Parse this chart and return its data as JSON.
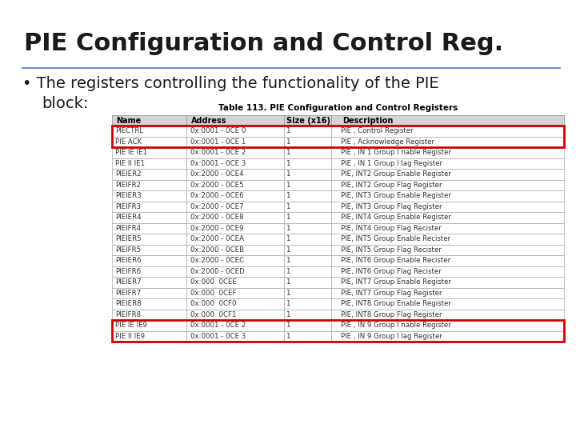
{
  "title": "PIE Configuration and Control Reg.",
  "bullet_text": "The registers controlling the functionality of the PIE",
  "bullet_text2": "block:",
  "table_title": "Table 113. PIE Configuration and Control Registers",
  "headers": [
    "Name",
    "Address",
    "Size (x16)",
    "Description"
  ],
  "rows": [
    [
      "PIECTRL",
      "0x:0001 - 0CE 0",
      "1",
      "PIE , Control Register"
    ],
    [
      "PIE ACK",
      "0x:0001 - 0CE 1",
      "1",
      "PIE , Acknowledge Register"
    ],
    [
      "PIE IE IE1",
      "0x:0001 - 0CE 2",
      "1",
      "PIE , IN 1 Group I nable Register"
    ],
    [
      "PIE II IE1",
      "0x:0001 - 0CE 3",
      "1",
      "PIE , IN 1 Group I lag Register"
    ],
    [
      "PIEIER2",
      "0x:2000 - 0CE4",
      "1",
      "PIE, INT2 Group Enable Register"
    ],
    [
      "PIEIFR2",
      "0x:2000 - 0CE5",
      "1",
      "PIE, INT2 Group Flag Register"
    ],
    [
      "PIEIER3",
      "0x:2000 - 0CE6",
      "1",
      "PIE, INT3 Group Enable Register"
    ],
    [
      "PIEIFR3",
      "0x:2000 - 0CE7",
      "1",
      "PIE, INT3 Group Flag Register"
    ],
    [
      "PIEIER4",
      "0x:2000 - 0CE8",
      "1",
      "PIE, INT4 Group Enable Register"
    ],
    [
      "PIEIFR4",
      "0x:2000 - 0CE9",
      "1",
      "PIE, INT4 Group Flag Recister"
    ],
    [
      "PIEIER5",
      "0x:2000 - 0CEA",
      "1",
      "PIE, INT5 Group Enable Recister"
    ],
    [
      "PIEIFR5",
      "0x:2000 - 0CEB",
      "1",
      "PIE, INT5 Group Flag Recister"
    ],
    [
      "PIEIER6",
      "0x:2000 - 0CEC",
      "1",
      "PIE, INT6 Group Enable Recister"
    ],
    [
      "PIEIFR6",
      "0x:2000 - 0CED",
      "1",
      "PIE, INT6 Group Flag Recister"
    ],
    [
      "PIEIER7",
      "0x:000  0CEE",
      "1",
      "PIE, INT7 Group Enable Register"
    ],
    [
      "PIEIFR7",
      "0x:000  0CEF",
      "1",
      "PIE, INT7 Group Flag Register"
    ],
    [
      "PIEIER8",
      "0x:000  0CF0",
      "1",
      "PIE, INT8 Group Enable Register"
    ],
    [
      "PIEIFR8",
      "0x:000  0CF1",
      "1",
      "PIE, INT8 Group Flag Register"
    ],
    [
      "PIE IE IE9",
      "0x:0001 - 0CE 2",
      "1",
      "PIE , IN 9 Group I nable Register"
    ],
    [
      "PIE II IE9",
      "0x:0001 - 0CE 3",
      "1",
      "PIE , IN 9 Group I lag Register"
    ]
  ],
  "highlighted_rows": [
    0,
    1,
    18,
    19
  ],
  "title_fontsize": 22,
  "bullet_fontsize": 14,
  "table_title_fontsize": 7.5,
  "table_fontsize": 6.2,
  "header_fontsize": 7,
  "background_color": "#ffffff",
  "title_color": "#1a1a1a",
  "separator_color": "#4472c4",
  "header_bg": "#d4d4d4",
  "row_bg_normal": "#ffffff",
  "highlight_row_bg": "#ffffff",
  "cell_edge_color": "#999999",
  "highlight_border_color": "#cc0000"
}
